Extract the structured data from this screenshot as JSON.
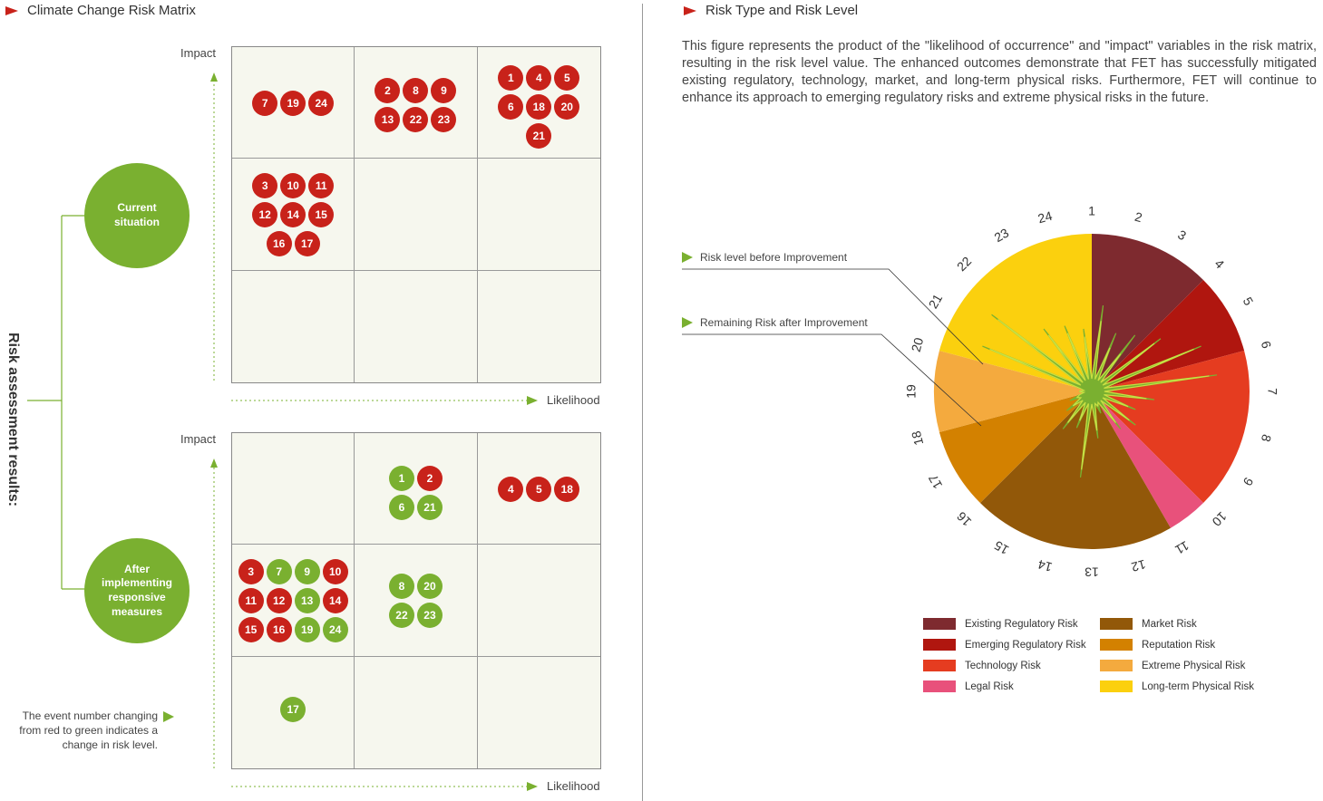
{
  "left_title": "Climate Change Risk Matrix",
  "right_title": "Risk Type and Risk Level",
  "side_title": "Risk assessment results:",
  "axis": {
    "impact": "Impact",
    "likelihood": "Likelihood"
  },
  "current_label": "Current situation",
  "after_label": "After implementing responsive measures",
  "note": "The event number changing from red to green indicates a change in risk level.",
  "description": "This figure represents the product of the \"likelihood of occurrence\" and \"impact\" variables in the risk matrix, resulting in the risk level value. The enhanced outcomes demonstrate that FET has successfully mitigated existing regulatory, technology, market, and long-term physical risks. Furthermore, FET will continue to enhance its approach to emerging regulatory risks and extreme physical risks in the future.",
  "callouts": {
    "before": "Risk level before Improvement",
    "after": "Remaining Risk after Improvement"
  },
  "colors": {
    "red": "#c8221a",
    "green": "#7ab030",
    "grid_bg": "#f6f7ee"
  },
  "chart_data": [
    {
      "type": "table",
      "title": "Current situation",
      "rows_top_to_bottom": "high-to-low impact",
      "cols_left_to_right": "low-to-high likelihood",
      "cells": [
        [
          [
            [
              {
                "n": "7",
                "c": "red"
              },
              {
                "n": "19",
                "c": "red"
              },
              {
                "n": "24",
                "c": "red"
              }
            ]
          ],
          [
            [
              {
                "n": "2",
                "c": "red"
              },
              {
                "n": "8",
                "c": "red"
              },
              {
                "n": "9",
                "c": "red"
              }
            ],
            [
              {
                "n": "13",
                "c": "red"
              },
              {
                "n": "22",
                "c": "red"
              },
              {
                "n": "23",
                "c": "red"
              }
            ]
          ],
          [
            [
              {
                "n": "1",
                "c": "red"
              },
              {
                "n": "4",
                "c": "red"
              },
              {
                "n": "5",
                "c": "red"
              }
            ],
            [
              {
                "n": "6",
                "c": "red"
              },
              {
                "n": "18",
                "c": "red"
              },
              {
                "n": "20",
                "c": "red"
              }
            ],
            [
              {
                "n": "21",
                "c": "red"
              }
            ]
          ]
        ],
        [
          [
            [
              {
                "n": "3",
                "c": "red"
              },
              {
                "n": "10",
                "c": "red"
              },
              {
                "n": "11",
                "c": "red"
              }
            ],
            [
              {
                "n": "12",
                "c": "red"
              },
              {
                "n": "14",
                "c": "red"
              },
              {
                "n": "15",
                "c": "red"
              }
            ],
            [
              {
                "n": "16",
                "c": "red"
              },
              {
                "n": "17",
                "c": "red"
              }
            ]
          ],
          [],
          []
        ],
        [
          [],
          [],
          []
        ]
      ]
    },
    {
      "type": "table",
      "title": "After implementing responsive measures",
      "rows_top_to_bottom": "high-to-low impact",
      "cols_left_to_right": "low-to-high likelihood",
      "cells": [
        [
          [],
          [
            [
              {
                "n": "1",
                "c": "green"
              },
              {
                "n": "2",
                "c": "red"
              }
            ],
            [
              {
                "n": "6",
                "c": "green"
              },
              {
                "n": "21",
                "c": "green"
              }
            ]
          ],
          [
            [
              {
                "n": "4",
                "c": "red"
              },
              {
                "n": "5",
                "c": "red"
              },
              {
                "n": "18",
                "c": "red"
              }
            ]
          ]
        ],
        [
          [
            [
              {
                "n": "3",
                "c": "red"
              },
              {
                "n": "7",
                "c": "green"
              },
              {
                "n": "9",
                "c": "green"
              },
              {
                "n": "10",
                "c": "red"
              }
            ],
            [
              {
                "n": "11",
                "c": "red"
              },
              {
                "n": "12",
                "c": "red"
              },
              {
                "n": "13",
                "c": "green"
              },
              {
                "n": "14",
                "c": "red"
              }
            ],
            [
              {
                "n": "15",
                "c": "red"
              },
              {
                "n": "16",
                "c": "red"
              },
              {
                "n": "19",
                "c": "green"
              },
              {
                "n": "24",
                "c": "green"
              }
            ]
          ],
          [
            [
              {
                "n": "8",
                "c": "green"
              },
              {
                "n": "20",
                "c": "green"
              }
            ],
            [
              {
                "n": "22",
                "c": "green"
              },
              {
                "n": "23",
                "c": "green"
              }
            ]
          ],
          []
        ],
        [
          [
            [
              {
                "n": "17",
                "c": "green"
              }
            ]
          ],
          [],
          []
        ]
      ]
    },
    {
      "type": "pie",
      "title": "Risk Type and Risk Level",
      "categories": [
        "1",
        "2",
        "3",
        "4",
        "5",
        "6",
        "7",
        "8",
        "9",
        "10",
        "11",
        "12",
        "13",
        "14",
        "15",
        "16",
        "17",
        "18",
        "19",
        "20",
        "21",
        "22",
        "23",
        "24"
      ],
      "sectors": [
        {
          "name": "Existing Regulatory Risk",
          "color": "#7e2a2f",
          "from": 1,
          "to": 3,
          "r": 1.0
        },
        {
          "name": "Emerging Regulatory Risk",
          "color": "#b0160f",
          "from": 4,
          "to": 5,
          "r": 1.0
        },
        {
          "name": "Technology Risk",
          "color": "#e53c20",
          "from": 6,
          "to": 9,
          "r": 1.0
        },
        {
          "name": "Legal Risk",
          "color": "#e8517b",
          "from": 10,
          "to": 10,
          "r": 1.0
        },
        {
          "name": "Market Risk",
          "color": "#925809",
          "from": 11,
          "to": 15,
          "r": 1.0
        },
        {
          "name": "Reputation Risk",
          "color": "#d38100",
          "from": 16,
          "to": 17,
          "r": 1.0
        },
        {
          "name": "Extreme Physical Risk",
          "color": "#f4aa3e",
          "from": 18,
          "to": 19,
          "r": 1.0
        },
        {
          "name": "Long-term Physical Risk",
          "color": "#fbd00e",
          "from": 20,
          "to": 24,
          "r": 1.0
        }
      ],
      "series": [
        {
          "name": "Risk level before Improvement",
          "values": [
            0.55,
            0.4,
            0.45,
            0.55,
            0.75,
            0.8,
            0.4,
            0.3,
            0.35,
            0.3,
            0.15,
            0.3,
            0.55,
            0.25,
            0.3,
            0.2,
            0.15,
            0.05,
            0.05,
            0.75,
            0.8,
            0.5,
            0.45,
            0.4
          ]
        },
        {
          "name": "Remaining Risk after Improvement",
          "values": [
            0.45,
            0.3,
            0.3,
            0.5,
            0.7,
            0.75,
            0.35,
            0.25,
            0.3,
            0.25,
            0.1,
            0.25,
            0.5,
            0.2,
            0.25,
            0.15,
            0.1,
            0.05,
            0.05,
            0.7,
            0.75,
            0.45,
            0.4,
            0.35
          ]
        }
      ]
    }
  ]
}
